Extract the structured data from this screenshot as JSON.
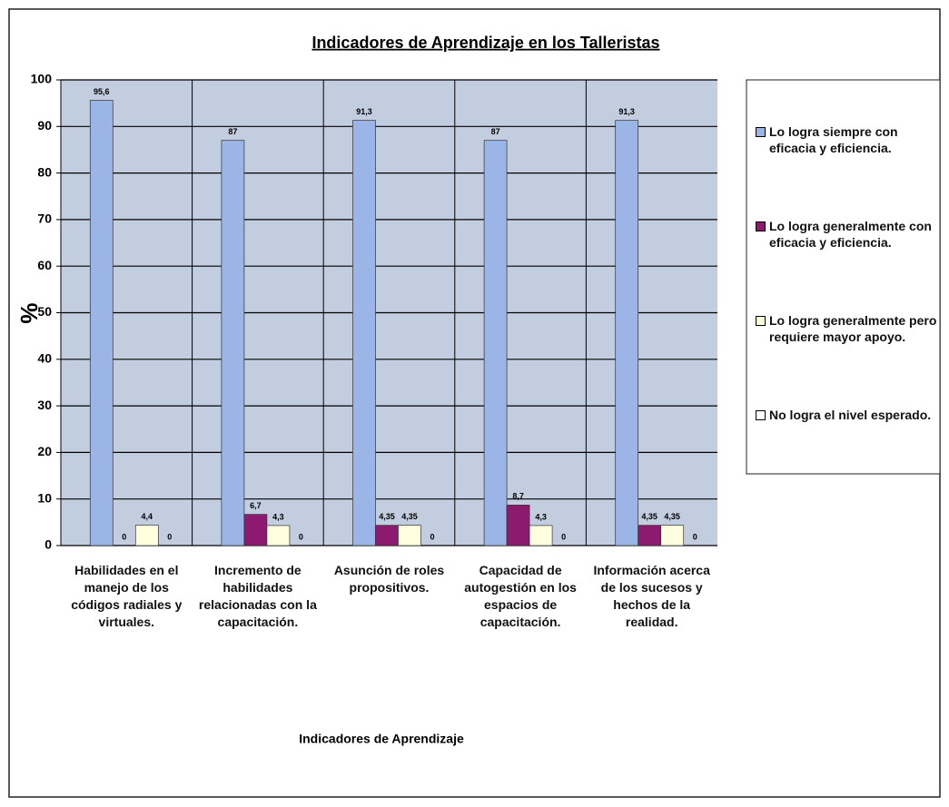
{
  "chart_data": {
    "type": "bar",
    "title": "Indicadores de Aprendizaje en los Talleristas",
    "y_label": "%",
    "x_label": "Indicadores de Aprendizaje",
    "categories": [
      "Habilidades en el manejo de los códigos radiales y virtuales.",
      "Incremento de habilidades relacionadas con la capacitación.",
      "Asunción de roles propositivos.",
      "Capacidad de autogestión en los espacios de capacitación.",
      "Información acerca de los sucesos y hechos de la realidad."
    ],
    "series": [
      {
        "name": "Lo logra siempre con eficacia y eficiencia.",
        "color": "#9bb5e6",
        "values": [
          95.6,
          87,
          91.3,
          87,
          91.3
        ],
        "value_labels": [
          "95,6",
          "87",
          "91,3",
          "87",
          "91,3"
        ]
      },
      {
        "name": "Lo logra generalmente con eficacia y eficiencia.",
        "color": "#8c1a6e",
        "values": [
          0,
          6.7,
          4.35,
          8.7,
          4.35
        ],
        "value_labels": [
          "0",
          "6,7",
          "4,35",
          "8,7",
          "4,35"
        ]
      },
      {
        "name": "Lo logra generalmente pero requiere mayor apoyo.",
        "color": "#ffffe0",
        "values": [
          4.4,
          4.3,
          4.35,
          4.3,
          4.35
        ],
        "value_labels": [
          "4,4",
          "4,3",
          "4,35",
          "4,3",
          "4,35"
        ]
      },
      {
        "name": "No logra el nivel esperado.",
        "color": "#ffffff",
        "values": [
          0,
          0,
          0,
          0,
          0
        ]
      }
    ],
    "ylim": [
      0,
      100
    ],
    "yticks": [
      0,
      10,
      20,
      30,
      40,
      50,
      60,
      70,
      80,
      90,
      100
    ],
    "grid": true
  }
}
